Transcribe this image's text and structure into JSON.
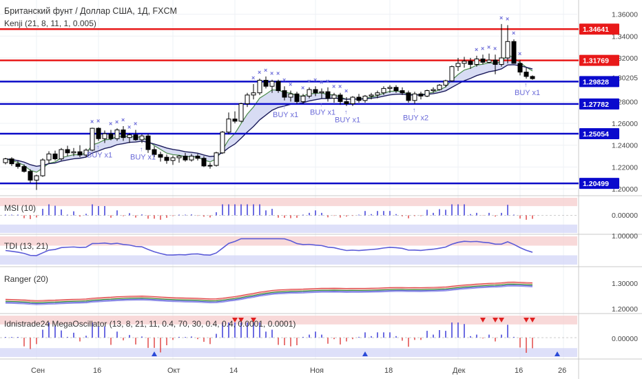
{
  "header": {
    "title": "Британский фунт / Доллар США, 1Д, FXCM",
    "indicator": "Kenji (21, 8, 11, 1, 0.005)"
  },
  "colors": {
    "bull_candle": "#ffffff",
    "bear_candle": "#000000",
    "resistance_line": "#e81919",
    "support_line": "#0a0ac8",
    "price_tag_resistance": "#e81919",
    "price_tag_support": "#0a0acd",
    "buy_signal": "#6a6ad8",
    "cross_marker": "#6a6ad8",
    "fast_ma": "#4a8a4a",
    "slow_ma": "#1a1a5a",
    "cloud_fill": "#c8cdf0",
    "zone_upper": "#f6d0d0",
    "zone_lower": "#d6d8f8",
    "osc_pos": "#3b3bd8",
    "osc_neg": "#e04848",
    "osc_green": "#3da33d",
    "arrow_down": "#e02020",
    "arrow_up": "#2a4ad8"
  },
  "chart_data": {
    "type": "candlestick",
    "price_axis": {
      "ylim": [
        1.195,
        1.368
      ],
      "ticks": [
        "1.36000",
        "1.34000",
        "1.32000",
        "1.30205",
        "1.28000",
        "1.26000",
        "1.24000",
        "1.22000",
        "1.20000"
      ]
    },
    "levels": [
      {
        "value": 1.34641,
        "label": "1.34641",
        "kind": "resistance"
      },
      {
        "value": 1.31769,
        "label": "1.31769",
        "kind": "resistance"
      },
      {
        "value": 1.29828,
        "label": "1.29828",
        "kind": "support"
      },
      {
        "value": 1.27782,
        "label": "1.27782",
        "kind": "support"
      },
      {
        "value": 1.25054,
        "label": "1.25054",
        "kind": "support"
      },
      {
        "value": 1.20499,
        "label": "1.20499",
        "kind": "support"
      }
    ],
    "candles": [
      [
        1.224,
        1.2285,
        1.2225,
        1.2275
      ],
      [
        1.2275,
        1.229,
        1.221,
        1.223
      ],
      [
        1.223,
        1.2255,
        1.2185,
        1.2205
      ],
      [
        1.2205,
        1.2225,
        1.215,
        1.216
      ],
      [
        1.216,
        1.218,
        1.2055,
        1.208
      ],
      [
        1.208,
        1.213,
        1.199,
        1.212
      ],
      [
        1.212,
        1.228,
        1.211,
        1.2265
      ],
      [
        1.2265,
        1.2345,
        1.223,
        1.232
      ],
      [
        1.232,
        1.235,
        1.226,
        1.2275
      ],
      [
        1.2275,
        1.2375,
        1.226,
        1.236
      ],
      [
        1.236,
        1.2395,
        1.23,
        1.233
      ],
      [
        1.233,
        1.2375,
        1.23,
        1.234
      ],
      [
        1.234,
        1.24,
        1.229,
        1.231
      ],
      [
        1.231,
        1.237,
        1.229,
        1.2355
      ],
      [
        1.2355,
        1.256,
        1.2345,
        1.2555
      ],
      [
        1.2555,
        1.2565,
        1.244,
        1.246
      ],
      [
        1.246,
        1.2535,
        1.242,
        1.2505
      ],
      [
        1.2505,
        1.254,
        1.2445,
        1.246
      ],
      [
        1.246,
        1.2555,
        1.244,
        1.254
      ],
      [
        1.254,
        1.2575,
        1.244,
        1.247
      ],
      [
        1.247,
        1.251,
        1.242,
        1.2495
      ],
      [
        1.2495,
        1.254,
        1.244,
        1.245
      ],
      [
        1.245,
        1.25,
        1.242,
        1.2485
      ],
      [
        1.2485,
        1.2505,
        1.233,
        1.236
      ],
      [
        1.236,
        1.239,
        1.229,
        1.2315
      ],
      [
        1.2315,
        1.234,
        1.225,
        1.229
      ],
      [
        1.229,
        1.2315,
        1.223,
        1.226
      ],
      [
        1.226,
        1.2305,
        1.222,
        1.2285
      ],
      [
        1.2285,
        1.231,
        1.224,
        1.23
      ],
      [
        1.23,
        1.233,
        1.225,
        1.2265
      ],
      [
        1.2265,
        1.232,
        1.225,
        1.23
      ],
      [
        1.23,
        1.232,
        1.226,
        1.228
      ],
      [
        1.228,
        1.23,
        1.22,
        1.221
      ],
      [
        1.221,
        1.224,
        1.2185,
        1.2215
      ],
      [
        1.2215,
        1.234,
        1.2205,
        1.233
      ],
      [
        1.233,
        1.253,
        1.232,
        1.252
      ],
      [
        1.252,
        1.27,
        1.25,
        1.264
      ],
      [
        1.264,
        1.271,
        1.26,
        1.262
      ],
      [
        1.262,
        1.279,
        1.261,
        1.278
      ],
      [
        1.278,
        1.288,
        1.275,
        1.286
      ],
      [
        1.286,
        1.296,
        1.282,
        1.288
      ],
      [
        1.288,
        1.301,
        1.286,
        1.2995
      ],
      [
        1.2995,
        1.303,
        1.292,
        1.294
      ],
      [
        1.294,
        1.3,
        1.288,
        1.2985
      ],
      [
        1.2985,
        1.3,
        1.288,
        1.29
      ],
      [
        1.29,
        1.294,
        1.281,
        1.284
      ],
      [
        1.284,
        1.29,
        1.28,
        1.287
      ],
      [
        1.287,
        1.289,
        1.278,
        1.28
      ],
      [
        1.28,
        1.287,
        1.278,
        1.285
      ],
      [
        1.285,
        1.293,
        1.283,
        1.291
      ],
      [
        1.291,
        1.294,
        1.285,
        1.288
      ],
      [
        1.288,
        1.292,
        1.283,
        1.289
      ],
      [
        1.289,
        1.293,
        1.28,
        1.283
      ],
      [
        1.283,
        1.288,
        1.279,
        1.286
      ],
      [
        1.286,
        1.288,
        1.277,
        1.28
      ],
      [
        1.28,
        1.284,
        1.276,
        1.278
      ],
      [
        1.278,
        1.285,
        1.276,
        1.284
      ],
      [
        1.284,
        1.287,
        1.279,
        1.281
      ],
      [
        1.281,
        1.286,
        1.279,
        1.285
      ],
      [
        1.285,
        1.288,
        1.282,
        1.286
      ],
      [
        1.286,
        1.29,
        1.283,
        1.288
      ],
      [
        1.288,
        1.294,
        1.286,
        1.292
      ],
      [
        1.292,
        1.295,
        1.288,
        1.293
      ],
      [
        1.293,
        1.295,
        1.288,
        1.29
      ],
      [
        1.29,
        1.293,
        1.286,
        1.288
      ],
      [
        1.288,
        1.29,
        1.279,
        1.281
      ],
      [
        1.281,
        1.289,
        1.278,
        1.287
      ],
      [
        1.287,
        1.289,
        1.282,
        1.285
      ],
      [
        1.285,
        1.291,
        1.284,
        1.29
      ],
      [
        1.29,
        1.293,
        1.288,
        1.291
      ],
      [
        1.291,
        1.296,
        1.29,
        1.295
      ],
      [
        1.295,
        1.3,
        1.293,
        1.299
      ],
      [
        1.299,
        1.313,
        1.298,
        1.312
      ],
      [
        1.312,
        1.32,
        1.308,
        1.315
      ],
      [
        1.315,
        1.321,
        1.311,
        1.317
      ],
      [
        1.317,
        1.32,
        1.31,
        1.314
      ],
      [
        1.314,
        1.322,
        1.312,
        1.319
      ],
      [
        1.319,
        1.323,
        1.314,
        1.316
      ],
      [
        1.316,
        1.324,
        1.315,
        1.318
      ],
      [
        1.318,
        1.323,
        1.305,
        1.314
      ],
      [
        1.314,
        1.351,
        1.312,
        1.32
      ],
      [
        1.32,
        1.35,
        1.315,
        1.335
      ],
      [
        1.335,
        1.337,
        1.315,
        1.315
      ],
      [
        1.315,
        1.318,
        1.304,
        1.307
      ],
      [
        1.307,
        1.311,
        1.301,
        1.303
      ],
      [
        1.303,
        1.304,
        1.3,
        1.301
      ]
    ],
    "buy_signals": [
      {
        "index": 15,
        "label": "BUY x1"
      },
      {
        "index": 22,
        "label": "BUY x1"
      },
      {
        "index": 45,
        "label": "BUY x1"
      },
      {
        "index": 51,
        "label": "BUY x1"
      },
      {
        "index": 55,
        "label": "BUY x1"
      },
      {
        "index": 66,
        "label": "BUY x2"
      },
      {
        "index": 84,
        "label": "BUY x1"
      }
    ],
    "sell_crosses": [
      14,
      15,
      17,
      18,
      19,
      20,
      21,
      40,
      41,
      42,
      43,
      44,
      45,
      46,
      48,
      49,
      50,
      51,
      52,
      53,
      54,
      55,
      76,
      77,
      78,
      79,
      80,
      81,
      82,
      83
    ],
    "panels": [
      {
        "name": "MSI (10)",
        "axis_label": "0.00000",
        "type": "histogram"
      },
      {
        "name": "TDI (13, 21)",
        "axis_label": "1.00000",
        "type": "line"
      },
      {
        "name": "Ranger (20)",
        "axis_labels": [
          "1.30000",
          "1.20000"
        ],
        "type": "bands"
      },
      {
        "name": "Idnistrade24 MegaOscillator (13, 8, 21, 11, 0.4, 70, 30, 0.4, 0.4, 0.0001, 0.0001)",
        "axis_label": "0.00000",
        "type": "histogram"
      }
    ],
    "x_ticks": [
      {
        "label": "Сен",
        "index": 5
      },
      {
        "label": "16",
        "index": 15
      },
      {
        "label": "Окт",
        "index": 27
      },
      {
        "label": "14",
        "index": 37
      },
      {
        "label": "Ноя",
        "index": 50
      },
      {
        "label": "18",
        "index": 62
      },
      {
        "label": "Дек",
        "index": 73
      },
      {
        "label": "16",
        "index": 83
      },
      {
        "label": "26",
        "index": 90
      }
    ]
  }
}
